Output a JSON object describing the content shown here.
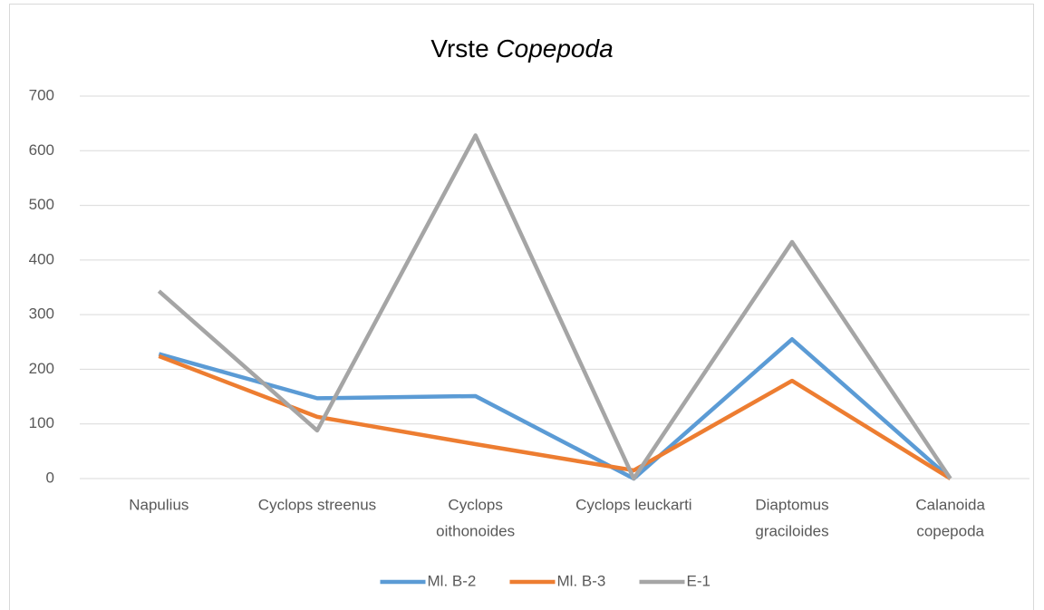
{
  "chart_data": {
    "type": "line",
    "title": {
      "text": "Vrste",
      "italic": "Copepoda"
    },
    "categories": [
      [
        "Napulius"
      ],
      [
        "Cyclops streenus"
      ],
      [
        "Cyclops",
        "oithonoides"
      ],
      [
        "Cyclops leuckarti"
      ],
      [
        "Diaptomus",
        "graciloides"
      ],
      [
        "Calanoida",
        "copepoda"
      ]
    ],
    "series": [
      {
        "name": "Ml. B-2",
        "color": "#5b9bd5",
        "values": [
          228,
          147,
          151,
          0,
          255,
          0
        ]
      },
      {
        "name": "Ml. B-3",
        "color": "#ed7d31",
        "values": [
          224,
          113,
          63,
          15,
          179,
          0
        ]
      },
      {
        "name": "E-1",
        "color": "#a5a5a5",
        "values": [
          343,
          88,
          628,
          0,
          433,
          0
        ]
      }
    ],
    "ylim": [
      0,
      700
    ],
    "yticks": [
      0,
      100,
      200,
      300,
      400,
      500,
      600,
      700
    ],
    "grid": true,
    "legend": "bottom"
  }
}
